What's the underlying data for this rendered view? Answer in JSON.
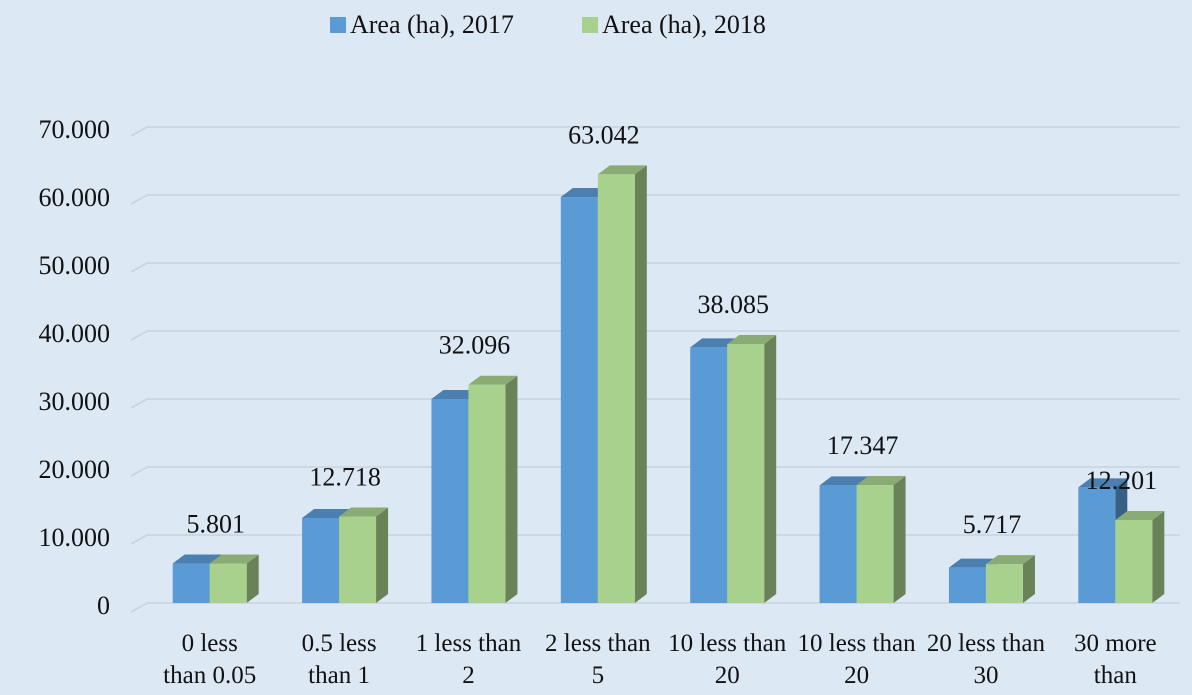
{
  "chart_data": {
    "type": "bar3d",
    "categories": [
      "0 less than 0.05",
      "0.5 less than 1",
      "1 less than 2",
      "2 less than 5",
      "10 less than 20",
      "10 less than 20",
      "20 less than 30",
      "30 more than"
    ],
    "series": [
      {
        "name": "Area (ha), 2017",
        "color": "#5b9bd5",
        "values": [
          5800,
          12500,
          30000,
          59700,
          37600,
          17300,
          5200,
          17000
        ]
      },
      {
        "name": "Area  (ha), 2018",
        "color": "#a9d18e",
        "values": [
          5801,
          12718,
          32096,
          63042,
          38085,
          17347,
          5717,
          12201
        ],
        "value_labels": [
          "5.801",
          "12.718",
          "32.096",
          "63.042",
          "38.085",
          "17.347",
          "5.717",
          "12.201"
        ]
      }
    ],
    "ylim": [
      0,
      70000
    ],
    "yticks": [
      0,
      {
        "value": 10000,
        "label": "10.000"
      },
      {
        "value": 20000,
        "label": "20.000"
      },
      {
        "value": 30000,
        "label": "30.000"
      },
      {
        "value": 40000,
        "label": "40.000"
      },
      {
        "value": 50000,
        "label": "50.000"
      },
      {
        "value": 60000,
        "label": "60.000"
      },
      {
        "value": 70000,
        "label": "70.000"
      }
    ],
    "grid": true,
    "legend": "top"
  }
}
